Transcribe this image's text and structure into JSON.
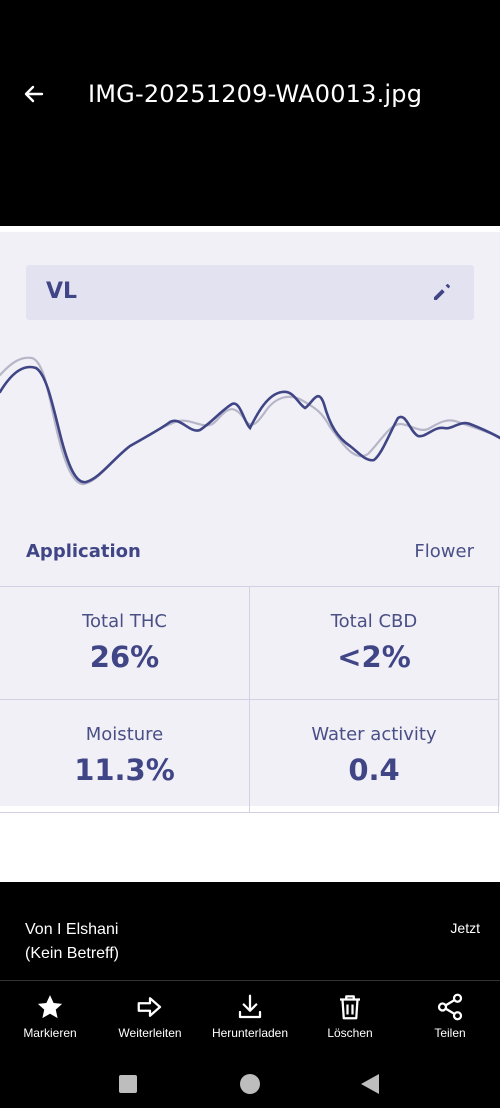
{
  "header": {
    "title": "IMG-20251209-WA0013.jpg",
    "back_icon": "arrow-left-icon"
  },
  "image_content": {
    "sample_name": "VL",
    "edit_icon": "pencil-icon",
    "application_label": "Application",
    "application_value": "Flower",
    "stats": [
      {
        "label": "Total THC",
        "value": "26%"
      },
      {
        "label": "Total CBD",
        "value": "<2%"
      },
      {
        "label": "Moisture",
        "value": "11.3%"
      },
      {
        "label": "Water activity",
        "value": "0.4"
      }
    ],
    "colors": {
      "accent": "#3f4585",
      "panel": "#f1f0f7",
      "box": "#e3e2f0",
      "reference_line": "#b6b6c8"
    }
  },
  "message": {
    "sender": "Von I Elshani",
    "subject": "(Kein Betreff)",
    "time": "Jetzt"
  },
  "actions": [
    {
      "label": "Markieren",
      "icon": "star-icon"
    },
    {
      "label": "Weiterleiten",
      "icon": "forward-arrow-icon"
    },
    {
      "label": "Herunterladen",
      "icon": "download-icon"
    },
    {
      "label": "Löschen",
      "icon": "trash-icon"
    },
    {
      "label": "Teilen",
      "icon": "share-icon"
    }
  ],
  "system_nav": {
    "recents_icon": "square-icon",
    "home_icon": "circle-icon",
    "back_icon": "triangle-back-icon"
  }
}
